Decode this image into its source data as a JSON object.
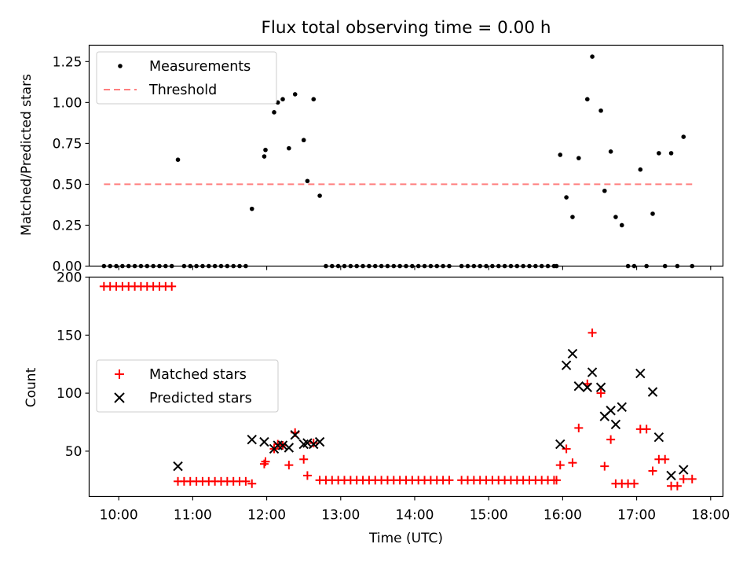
{
  "chart_data": [
    {
      "type": "scatter",
      "title": "Flux total observing time = 0.00 h",
      "xlabel": "",
      "ylabel": "Matched/Predicted stars",
      "xlim": [
        "09:36",
        "18:10"
      ],
      "ylim": [
        0,
        1.35
      ],
      "yticks": [
        "0.00",
        "0.25",
        "0.50",
        "0.75",
        "1.00",
        "1.25"
      ],
      "legend_position": "top-left",
      "series": [
        {
          "name": "Measurements",
          "kind": "scatter",
          "color": "#000000",
          "points": [
            [
              "09:48",
              0
            ],
            [
              "09:53",
              0
            ],
            [
              "09:58",
              0
            ],
            [
              "10:03",
              0
            ],
            [
              "10:08",
              0
            ],
            [
              "10:13",
              0
            ],
            [
              "10:18",
              0
            ],
            [
              "10:23",
              0
            ],
            [
              "10:28",
              0
            ],
            [
              "10:33",
              0
            ],
            [
              "10:38",
              0
            ],
            [
              "10:43",
              0
            ],
            [
              "10:48",
              0.65
            ],
            [
              "10:53",
              0
            ],
            [
              "10:58",
              0
            ],
            [
              "11:03",
              0
            ],
            [
              "11:08",
              0
            ],
            [
              "11:13",
              0
            ],
            [
              "11:18",
              0
            ],
            [
              "11:23",
              0
            ],
            [
              "11:28",
              0
            ],
            [
              "11:33",
              0
            ],
            [
              "11:38",
              0
            ],
            [
              "11:43",
              0
            ],
            [
              "11:48",
              0.35
            ],
            [
              "11:58",
              0.67
            ],
            [
              "11:59",
              0.71
            ],
            [
              "12:06",
              0.94
            ],
            [
              "12:09",
              1.0
            ],
            [
              "12:13",
              1.02
            ],
            [
              "12:18",
              0.72
            ],
            [
              "12:23",
              1.05
            ],
            [
              "12:30",
              0.77
            ],
            [
              "12:33",
              0.52
            ],
            [
              "12:38",
              1.02
            ],
            [
              "12:43",
              0.43
            ],
            [
              "12:48",
              0
            ],
            [
              "12:53",
              0
            ],
            [
              "12:58",
              0
            ],
            [
              "13:03",
              0
            ],
            [
              "13:08",
              0
            ],
            [
              "13:13",
              0
            ],
            [
              "13:18",
              0
            ],
            [
              "13:23",
              0
            ],
            [
              "13:28",
              0
            ],
            [
              "13:33",
              0
            ],
            [
              "13:38",
              0
            ],
            [
              "13:43",
              0
            ],
            [
              "13:48",
              0
            ],
            [
              "13:53",
              0
            ],
            [
              "13:58",
              0
            ],
            [
              "14:03",
              0
            ],
            [
              "14:08",
              0
            ],
            [
              "14:13",
              0
            ],
            [
              "14:18",
              0
            ],
            [
              "14:23",
              0
            ],
            [
              "14:28",
              0
            ],
            [
              "14:38",
              0
            ],
            [
              "14:43",
              0
            ],
            [
              "14:48",
              0
            ],
            [
              "14:53",
              0
            ],
            [
              "14:58",
              0
            ],
            [
              "15:03",
              0
            ],
            [
              "15:08",
              0
            ],
            [
              "15:13",
              0
            ],
            [
              "15:18",
              0
            ],
            [
              "15:23",
              0
            ],
            [
              "15:28",
              0
            ],
            [
              "15:33",
              0
            ],
            [
              "15:38",
              0
            ],
            [
              "15:43",
              0
            ],
            [
              "15:48",
              0
            ],
            [
              "15:53",
              0
            ],
            [
              "15:55",
              0
            ],
            [
              "15:58",
              0.68
            ],
            [
              "16:03",
              0.42
            ],
            [
              "16:08",
              0.3
            ],
            [
              "16:13",
              0.66
            ],
            [
              "16:20",
              1.02
            ],
            [
              "16:24",
              1.28
            ],
            [
              "16:31",
              0.95
            ],
            [
              "16:34",
              0.46
            ],
            [
              "16:39",
              0.7
            ],
            [
              "16:43",
              0.3
            ],
            [
              "16:48",
              0.25
            ],
            [
              "16:53",
              0
            ],
            [
              "16:58",
              0
            ],
            [
              "17:03",
              0.59
            ],
            [
              "17:08",
              0
            ],
            [
              "17:13",
              0.32
            ],
            [
              "17:18",
              0.69
            ],
            [
              "17:23",
              0
            ],
            [
              "17:28",
              0.69
            ],
            [
              "17:33",
              0
            ],
            [
              "17:38",
              0.79
            ],
            [
              "17:45",
              0
            ]
          ]
        },
        {
          "name": "Threshold",
          "kind": "line",
          "dashed": true,
          "color": "#ff7f7f",
          "x": [
            "09:48",
            "17:45"
          ],
          "y": [
            0.5,
            0.5
          ]
        }
      ]
    },
    {
      "type": "scatter",
      "title": "",
      "xlabel": "Time (UTC)",
      "ylabel": "Count",
      "xlim": [
        "09:36",
        "18:10"
      ],
      "ylim": [
        11,
        200
      ],
      "yticks": [
        "50",
        "100",
        "150",
        "200"
      ],
      "xticks": [
        "10:00",
        "11:00",
        "12:00",
        "13:00",
        "14:00",
        "15:00",
        "16:00",
        "17:00",
        "18:00"
      ],
      "legend_position": "center-left",
      "series": [
        {
          "name": "Matched stars",
          "marker": "plus",
          "color": "#ff0000",
          "points": [
            [
              "09:48",
              192
            ],
            [
              "09:53",
              192
            ],
            [
              "09:58",
              192
            ],
            [
              "10:03",
              192
            ],
            [
              "10:08",
              192
            ],
            [
              "10:13",
              192
            ],
            [
              "10:18",
              192
            ],
            [
              "10:23",
              192
            ],
            [
              "10:28",
              192
            ],
            [
              "10:33",
              192
            ],
            [
              "10:38",
              192
            ],
            [
              "10:43",
              192
            ],
            [
              "10:48",
              24
            ],
            [
              "10:53",
              24
            ],
            [
              "10:58",
              24
            ],
            [
              "11:03",
              24
            ],
            [
              "11:08",
              24
            ],
            [
              "11:13",
              24
            ],
            [
              "11:18",
              24
            ],
            [
              "11:23",
              24
            ],
            [
              "11:28",
              24
            ],
            [
              "11:33",
              24
            ],
            [
              "11:38",
              24
            ],
            [
              "11:43",
              24
            ],
            [
              "11:48",
              22
            ],
            [
              "11:58",
              39
            ],
            [
              "11:59",
              41
            ],
            [
              "12:06",
              52
            ],
            [
              "12:09",
              56
            ],
            [
              "12:13",
              55
            ],
            [
              "12:18",
              38
            ],
            [
              "12:23",
              66
            ],
            [
              "12:30",
              43
            ],
            [
              "12:33",
              29
            ],
            [
              "12:38",
              57
            ],
            [
              "12:43",
              25
            ],
            [
              "12:48",
              25
            ],
            [
              "12:53",
              25
            ],
            [
              "12:58",
              25
            ],
            [
              "13:03",
              25
            ],
            [
              "13:08",
              25
            ],
            [
              "13:13",
              25
            ],
            [
              "13:18",
              25
            ],
            [
              "13:23",
              25
            ],
            [
              "13:28",
              25
            ],
            [
              "13:33",
              25
            ],
            [
              "13:38",
              25
            ],
            [
              "13:43",
              25
            ],
            [
              "13:48",
              25
            ],
            [
              "13:53",
              25
            ],
            [
              "13:58",
              25
            ],
            [
              "14:03",
              25
            ],
            [
              "14:08",
              25
            ],
            [
              "14:13",
              25
            ],
            [
              "14:18",
              25
            ],
            [
              "14:23",
              25
            ],
            [
              "14:28",
              25
            ],
            [
              "14:38",
              25
            ],
            [
              "14:43",
              25
            ],
            [
              "14:48",
              25
            ],
            [
              "14:53",
              25
            ],
            [
              "14:58",
              25
            ],
            [
              "15:03",
              25
            ],
            [
              "15:08",
              25
            ],
            [
              "15:13",
              25
            ],
            [
              "15:18",
              25
            ],
            [
              "15:23",
              25
            ],
            [
              "15:28",
              25
            ],
            [
              "15:33",
              25
            ],
            [
              "15:38",
              25
            ],
            [
              "15:43",
              25
            ],
            [
              "15:48",
              25
            ],
            [
              "15:53",
              25
            ],
            [
              "15:55",
              25
            ],
            [
              "15:58",
              38
            ],
            [
              "16:03",
              52
            ],
            [
              "16:08",
              40
            ],
            [
              "16:13",
              70
            ],
            [
              "16:20",
              108
            ],
            [
              "16:24",
              152
            ],
            [
              "16:31",
              100
            ],
            [
              "16:34",
              37
            ],
            [
              "16:39",
              60
            ],
            [
              "16:43",
              22
            ],
            [
              "16:48",
              22
            ],
            [
              "16:53",
              22
            ],
            [
              "16:58",
              22
            ],
            [
              "17:03",
              69
            ],
            [
              "17:08",
              69
            ],
            [
              "17:13",
              33
            ],
            [
              "17:18",
              43
            ],
            [
              "17:23",
              43
            ],
            [
              "17:28",
              20
            ],
            [
              "17:33",
              20
            ],
            [
              "17:38",
              26
            ],
            [
              "17:45",
              26
            ]
          ]
        },
        {
          "name": "Predicted stars",
          "marker": "x",
          "color": "#000000",
          "points": [
            [
              "10:48",
              37
            ],
            [
              "11:48",
              60
            ],
            [
              "11:58",
              58
            ],
            [
              "12:06",
              52
            ],
            [
              "12:09",
              55
            ],
            [
              "12:13",
              55
            ],
            [
              "12:18",
              53
            ],
            [
              "12:23",
              64
            ],
            [
              "12:30",
              56
            ],
            [
              "12:33",
              57
            ],
            [
              "12:38",
              56
            ],
            [
              "12:43",
              58
            ],
            [
              "15:58",
              56
            ],
            [
              "16:03",
              124
            ],
            [
              "16:08",
              134
            ],
            [
              "16:13",
              106
            ],
            [
              "16:20",
              105
            ],
            [
              "16:24",
              118
            ],
            [
              "16:31",
              105
            ],
            [
              "16:34",
              80
            ],
            [
              "16:39",
              85
            ],
            [
              "16:43",
              73
            ],
            [
              "16:48",
              88
            ],
            [
              "17:03",
              117
            ],
            [
              "17:13",
              101
            ],
            [
              "17:18",
              62
            ],
            [
              "17:28",
              29
            ],
            [
              "17:38",
              34
            ]
          ]
        }
      ]
    }
  ]
}
